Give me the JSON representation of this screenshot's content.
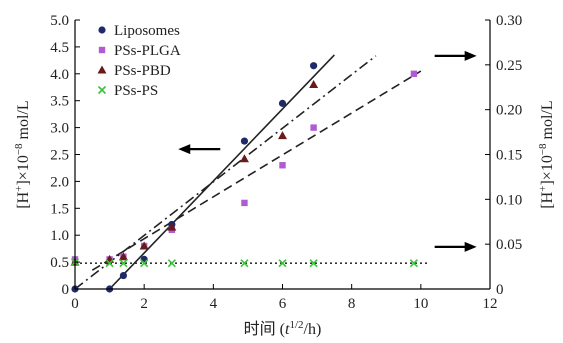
{
  "chart_data": {
    "type": "scatter",
    "xlabel": "时间 (t1/2/h)",
    "xlabel_parts": {
      "prefix": "时间 (",
      "var": "t",
      "sup": "1/2",
      "suffix": "/h)"
    },
    "ylabel": "[H+]×10−8 mol/L",
    "ylabel_parts": {
      "base": "[H",
      "sup": "+",
      "mid": "]×10",
      "exp": "−8",
      "unit": " mol/L"
    },
    "y2label": "[H+]×10−8 mol/L",
    "xlim": [
      0,
      12
    ],
    "ylim": [
      0,
      5
    ],
    "y2lim": [
      0,
      0.3
    ],
    "xticks": [
      "0",
      "2",
      "4",
      "6",
      "8",
      "10",
      "12"
    ],
    "yticks": [
      "0",
      "0.5",
      "1.0",
      "1.5",
      "2.0",
      "2.5",
      "3.0",
      "3.5",
      "4.0",
      "4.5",
      "5.0"
    ],
    "y2ticks": [
      "0",
      "0.05",
      "0.10",
      "0.15",
      "0.20",
      "0.25",
      "0.30"
    ],
    "legend_position": "top-left",
    "series": [
      {
        "name": "Liposomes",
        "marker": "circle",
        "color": "#1f2a6b",
        "axis": "left",
        "x": [
          0,
          1,
          1.4,
          2,
          2.8,
          4.9,
          6,
          6.9
        ],
        "y": [
          0,
          0,
          0.25,
          0.55,
          1.2,
          2.75,
          3.45,
          4.15
        ],
        "fit": {
          "style": "solid",
          "x": [
            1.0,
            7.5
          ],
          "y": [
            0.0,
            4.35
          ]
        }
      },
      {
        "name": "PSs-PLGA",
        "marker": "square",
        "color": "#b05bd4",
        "axis": "right",
        "x": [
          0,
          1,
          1.4,
          2,
          2.8,
          4.9,
          6,
          6.9,
          9.8
        ],
        "y": [
          0.033,
          0.033,
          0.036,
          0.048,
          0.066,
          0.096,
          0.138,
          0.18,
          0.24
        ],
        "fit": {
          "style": "dashdot",
          "x": [
            0.0,
            8.7
          ],
          "y": [
            0.0,
            0.26
          ]
        }
      },
      {
        "name": "PSs-PBD",
        "marker": "triangle",
        "color": "#6b1a1a",
        "axis": "left",
        "x": [
          0,
          1,
          1.4,
          2,
          2.8,
          4.9,
          6,
          6.9
        ],
        "y": [
          0.5,
          0.55,
          0.6,
          0.8,
          1.15,
          2.42,
          2.85,
          3.8
        ],
        "fit": {
          "style": "dashed",
          "x": [
            0.5,
            10.0
          ],
          "y": [
            0.35,
            4.05
          ]
        }
      },
      {
        "name": "PSs-PS",
        "marker": "x",
        "color": "#3bc23b",
        "axis": "left",
        "x": [
          0,
          1,
          1.4,
          2,
          2.8,
          4.9,
          6,
          6.9,
          9.8
        ],
        "y": [
          0.5,
          0.48,
          0.48,
          0.48,
          0.48,
          0.48,
          0.48,
          0.48,
          0.48
        ],
        "fit": {
          "style": "dotted",
          "x": [
            0.0,
            10.2
          ],
          "y": [
            0.48,
            0.48
          ]
        }
      }
    ],
    "annotations": [
      {
        "type": "arrow",
        "direction": "left",
        "points_to_axis": "left",
        "at": [
          4.2,
          2.6
        ]
      },
      {
        "type": "arrow",
        "direction": "right",
        "points_to_axis": "right",
        "at": [
          10.4,
          0.26
        ]
      },
      {
        "type": "arrow",
        "direction": "right",
        "points_to_axis": "right",
        "at": [
          10.4,
          0.047
        ]
      }
    ]
  }
}
